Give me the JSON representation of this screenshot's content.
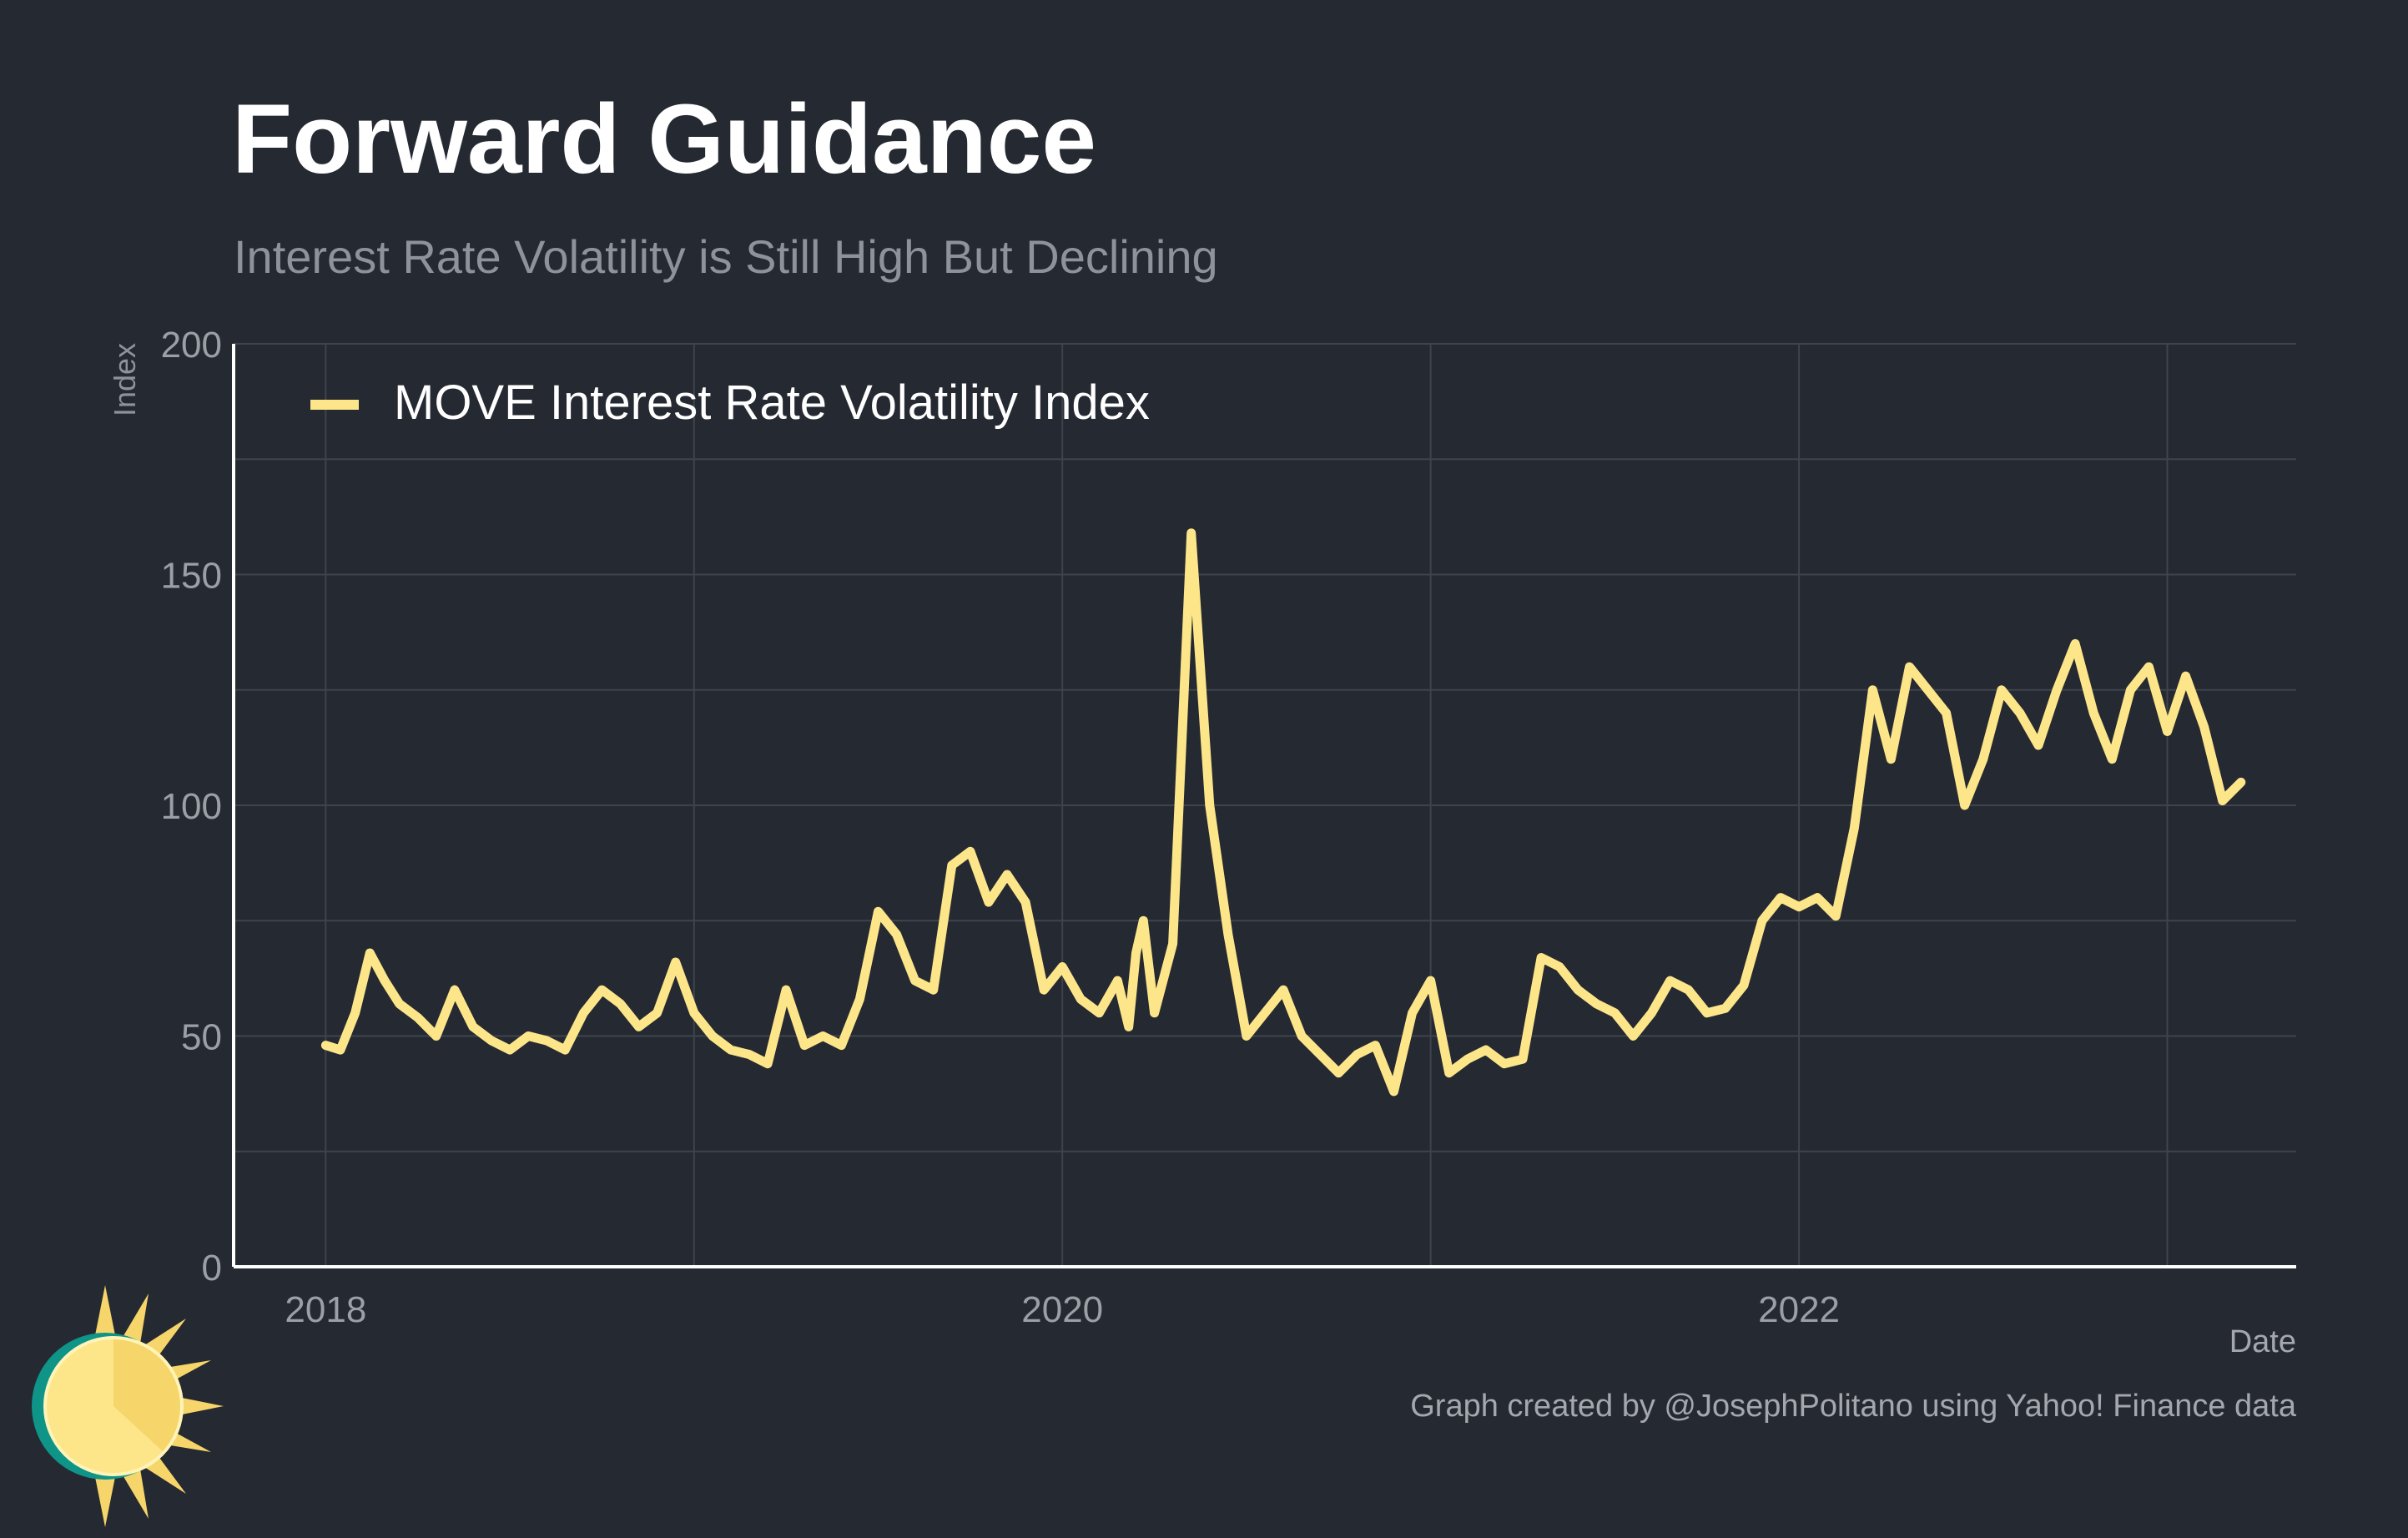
{
  "header": {
    "title": "Forward Guidance",
    "subtitle": "Interest Rate Volatility is Still High But Declining"
  },
  "footer": {
    "caption": "Graph created by @JosephPolitano using Yahoo! Finance data"
  },
  "logo": {
    "icon": "sun-logo-icon",
    "colors": {
      "face": "#fde68a",
      "rays": "#f6d56a",
      "rim": "#0f9488"
    }
  },
  "colors": {
    "background": "#252932",
    "grid": "#3e434c",
    "axis": "#ffffff",
    "line": "#fde68a",
    "tick_text": "#9aa0a6",
    "title": "#ffffff",
    "subtitle": "#8e939b"
  },
  "chart_data": {
    "type": "line",
    "title": "Forward Guidance",
    "subtitle": "Interest Rate Volatility is Still High But Declining",
    "xlabel": "Date",
    "ylabel": "Index",
    "ylim": [
      0,
      200
    ],
    "yticks": [
      0,
      50,
      100,
      150,
      200
    ],
    "xlim": [
      2017.75,
      2023.35
    ],
    "xticks": [
      2018,
      2020,
      2022
    ],
    "xtick_labels": [
      "2018",
      "2020",
      "2022"
    ],
    "grid": true,
    "legend": {
      "position": "top-left"
    },
    "series": [
      {
        "name": "MOVE Interest Rate Volatility Index",
        "color": "#fde68a",
        "x": [
          2018.0,
          2018.04,
          2018.08,
          2018.12,
          2018.16,
          2018.2,
          2018.25,
          2018.3,
          2018.35,
          2018.4,
          2018.45,
          2018.5,
          2018.55,
          2018.6,
          2018.65,
          2018.7,
          2018.75,
          2018.8,
          2018.85,
          2018.9,
          2018.95,
          2019.0,
          2019.05,
          2019.1,
          2019.15,
          2019.2,
          2019.25,
          2019.3,
          2019.35,
          2019.4,
          2019.45,
          2019.5,
          2019.55,
          2019.6,
          2019.65,
          2019.7,
          2019.75,
          2019.8,
          2019.85,
          2019.9,
          2019.95,
          2020.0,
          2020.05,
          2020.1,
          2020.15,
          2020.18,
          2020.2,
          2020.22,
          2020.25,
          2020.3,
          2020.35,
          2020.4,
          2020.45,
          2020.5,
          2020.55,
          2020.6,
          2020.65,
          2020.7,
          2020.75,
          2020.8,
          2020.85,
          2020.9,
          2020.95,
          2021.0,
          2021.05,
          2021.1,
          2021.15,
          2021.2,
          2021.25,
          2021.3,
          2021.35,
          2021.4,
          2021.45,
          2021.5,
          2021.55,
          2021.6,
          2021.65,
          2021.7,
          2021.75,
          2021.8,
          2021.85,
          2021.9,
          2021.95,
          2022.0,
          2022.05,
          2022.1,
          2022.15,
          2022.2,
          2022.25,
          2022.3,
          2022.35,
          2022.4,
          2022.45,
          2022.5,
          2022.55,
          2022.6,
          2022.65,
          2022.7,
          2022.75,
          2022.8,
          2022.85,
          2022.9,
          2022.95,
          2023.0,
          2023.05,
          2023.1,
          2023.15,
          2023.2
        ],
        "values": [
          48,
          47,
          55,
          68,
          62,
          57,
          54,
          50,
          60,
          52,
          49,
          47,
          50,
          49,
          47,
          55,
          60,
          57,
          52,
          55,
          66,
          55,
          50,
          47,
          46,
          44,
          60,
          48,
          50,
          48,
          58,
          77,
          72,
          62,
          60,
          87,
          90,
          79,
          85,
          79,
          60,
          65,
          58,
          55,
          62,
          52,
          68,
          75,
          55,
          70,
          159,
          100,
          72,
          50,
          55,
          60,
          50,
          46,
          42,
          46,
          48,
          38,
          55,
          62,
          42,
          45,
          47,
          44,
          45,
          67,
          65,
          60,
          57,
          55,
          50,
          55,
          62,
          60,
          55,
          56,
          61,
          75,
          80,
          78,
          80,
          76,
          95,
          125,
          110,
          130,
          125,
          120,
          100,
          110,
          125,
          120,
          113,
          125,
          135,
          120,
          110,
          125,
          130,
          116,
          128,
          117,
          101,
          105
        ]
      }
    ]
  }
}
